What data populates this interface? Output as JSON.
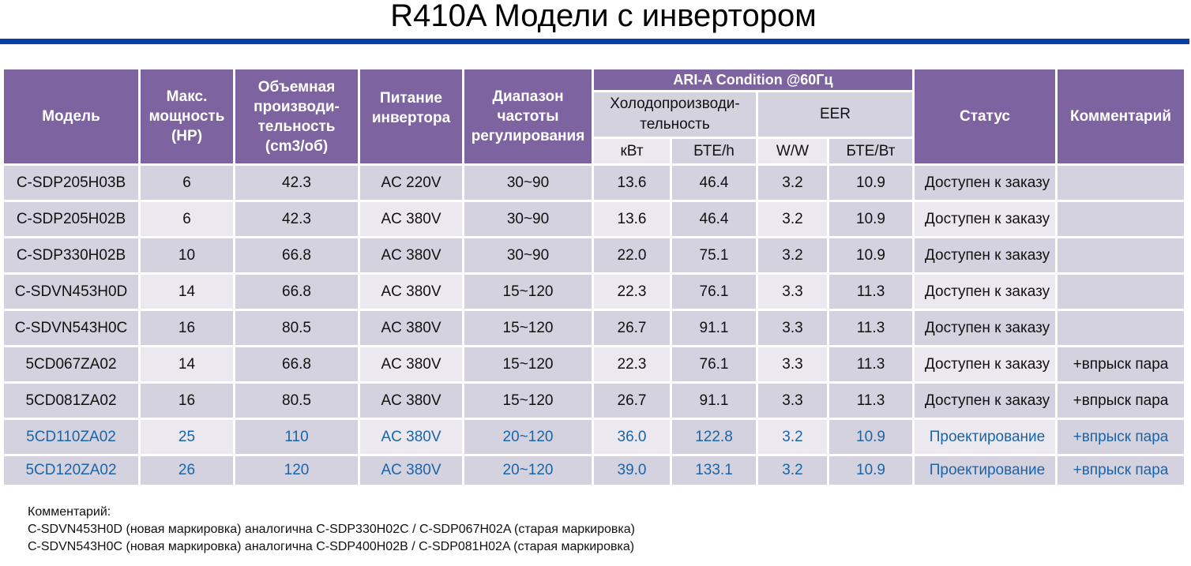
{
  "page": {
    "title": "R410A Модели с инвертором",
    "accent_colors": {
      "rule": "#0a3ea8",
      "header": "#7d64a0",
      "cell": "#d5d2df",
      "cell_light": "#ebe9ef",
      "planned_text": "#1a64a8"
    }
  },
  "table": {
    "headers": {
      "model": "Модель",
      "hp": "Макс. мощность (HP)",
      "hp_lines": [
        "Макс.",
        "мощность",
        "(HP)"
      ],
      "volume_lines": [
        "Объемная",
        "производи-",
        "тельность",
        "(cm3/об)"
      ],
      "power_lines": [
        "Питание",
        "инвертора"
      ],
      "freq_lines": [
        "Диапазон",
        "частоты",
        "регулирования"
      ],
      "ari": "ARI-A Condition @60Гц",
      "cooling_lines": [
        "Холодопроизводи-",
        "тельность"
      ],
      "eer": "EER",
      "units": [
        "кВт",
        "БТЕ/h",
        "W/W",
        "БТЕ/Вт"
      ],
      "status": "Статус",
      "comment": "Комментарий"
    },
    "rows": [
      {
        "model": "C-SDP205H03B",
        "hp": "6",
        "volume": "42.3",
        "power": "AC 220V",
        "freq": "30~90",
        "kw": "13.6",
        "btuh": "46.4",
        "ww": "3.2",
        "btuw": "10.9",
        "status": "Доступен к заказу",
        "comment": ""
      },
      {
        "model": "C-SDP205H02B",
        "hp": "6",
        "volume": "42.3",
        "power": "AC 380V",
        "freq": "30~90",
        "kw": "13.6",
        "btuh": "46.4",
        "ww": "3.2",
        "btuw": "10.9",
        "status": "Доступен к заказу",
        "comment": ""
      },
      {
        "model": "C-SDP330H02B",
        "hp": "10",
        "volume": "66.8",
        "power": "AC 380V",
        "freq": "30~90",
        "kw": "22.0",
        "btuh": "75.1",
        "ww": "3.2",
        "btuw": "10.9",
        "status": "Доступен к заказу",
        "comment": ""
      },
      {
        "model": "C-SDVN453H0D",
        "hp": "14",
        "volume": "66.8",
        "power": "AC 380V",
        "freq": "15~120",
        "kw": "22.3",
        "btuh": "76.1",
        "ww": "3.3",
        "btuw": "11.3",
        "status": "Доступен к заказу",
        "comment": ""
      },
      {
        "model": "C-SDVN543H0C",
        "hp": "16",
        "volume": "80.5",
        "power": "AC 380V",
        "freq": "15~120",
        "kw": "26.7",
        "btuh": "91.1",
        "ww": "3.3",
        "btuw": "11.3",
        "status": "Доступен к заказу",
        "comment": ""
      },
      {
        "model": "5CD067ZA02",
        "hp": "14",
        "volume": "66.8",
        "power": "AC 380V",
        "freq": "15~120",
        "kw": "22.3",
        "btuh": "76.1",
        "ww": "3.3",
        "btuw": "11.3",
        "status": "Доступен к заказу",
        "comment": "+впрыск пара"
      },
      {
        "model": "5CD081ZA02",
        "hp": "16",
        "volume": "80.5",
        "power": "AC 380V",
        "freq": "15~120",
        "kw": "26.7",
        "btuh": "91.1",
        "ww": "3.3",
        "btuw": "11.3",
        "status": "Доступен к заказу",
        "comment": "+впрыск пара"
      },
      {
        "model": "5CD110ZA02",
        "hp": "25",
        "volume": "110",
        "power": "AC 380V",
        "freq": "20~120",
        "kw": "36.0",
        "btuh": "122.8",
        "ww": "3.2",
        "btuw": "10.9",
        "status": "Проектирование",
        "comment": "+впрыск пара"
      },
      {
        "model": "5CD120ZA02",
        "hp": "26",
        "volume": "120",
        "power": "AC 380V",
        "freq": "20~120",
        "kw": "39.0",
        "btuh": "133.1",
        "ww": "3.2",
        "btuw": "10.9",
        "status": "Проектирование",
        "comment": "+впрыск пара"
      }
    ]
  },
  "notes": {
    "heading": "Комментарий:",
    "lines": [
      "C-SDVN453H0D (новая маркировка) аналогична C-SDP330H02C / C-SDP067H02A  (старая маркировка)",
      "C-SDVN543H0C (новая маркировка) аналогична C-SDP400H02B / C-SDP081H02A  (старая маркировка)"
    ]
  }
}
